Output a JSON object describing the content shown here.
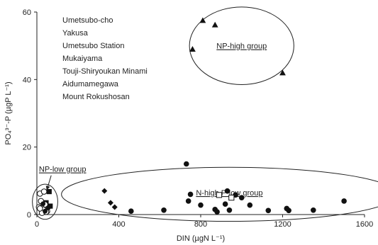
{
  "chart_data": {
    "type": "scatter",
    "xlabel": "DIN (µgN L⁻¹)",
    "ylabel": "PO₄³⁻-P (µgP L⁻¹)",
    "xlim": [
      0,
      1600
    ],
    "ylim": [
      0,
      60
    ],
    "xticks": [
      "0",
      "400",
      "800",
      "1200",
      "1600"
    ],
    "yticks": [
      "0",
      "20",
      "40",
      "60"
    ],
    "grid": false,
    "legend_position": "top-left",
    "series": [
      {
        "name": "Umetsubo-cho",
        "marker": "filled-circle",
        "x": [
          460,
          620,
          740,
          800,
          870,
          880,
          920,
          930,
          940,
          970,
          1000,
          1040,
          1130,
          1220,
          1230,
          1350,
          1500,
          730,
          750
        ],
        "y": [
          1.0,
          1.3,
          4.0,
          2.8,
          1.5,
          0.8,
          3.1,
          7.0,
          1.3,
          5.8,
          5.0,
          2.8,
          1.2,
          1.8,
          1.2,
          1.3,
          4.0,
          15.0,
          6.0
        ]
      },
      {
        "name": "Yakusa",
        "marker": "filled-diamond",
        "x": [
          330,
          360,
          380
        ],
        "y": [
          7.0,
          3.5,
          2.2
        ]
      },
      {
        "name": "Umetsubo Station",
        "marker": "open-square",
        "x": [
          890,
          950
        ],
        "y": [
          5.8,
          5.0
        ]
      },
      {
        "name": "Mukaiyama",
        "marker": "filled-triangle",
        "x": [
          810,
          870,
          760,
          1200
        ],
        "y": [
          57.5,
          56.2,
          49.0,
          42.0
        ]
      },
      {
        "name": "Touji-Shiryoukan Minami",
        "marker": "filled-square",
        "x": [
          60,
          45,
          65
        ],
        "y": [
          6.8,
          3.5,
          2.5
        ]
      },
      {
        "name": "Aidumamegawa",
        "marker": "open-circle",
        "x": [
          15,
          35,
          20,
          40,
          10,
          30,
          50,
          25,
          45,
          15
        ],
        "y": [
          6.2,
          6.8,
          4.0,
          3.0,
          2.2,
          1.5,
          1.0,
          0.5,
          0.8,
          1.8
        ]
      },
      {
        "name": "Mount Rokushosan",
        "marker": "filled-circle-small",
        "x": [
          30,
          55,
          40
        ],
        "y": [
          3.2,
          2.0,
          1.0
        ]
      }
    ],
    "groups": [
      {
        "label": "NP-high group",
        "cx": 1000,
        "cy": 50,
        "rx": 255,
        "ry": 11.5
      },
      {
        "label": "N-high P-low group",
        "cx": 940,
        "cy": 6,
        "rx": 820,
        "ry": 8
      },
      {
        "label": "NP-low group",
        "cx": 40,
        "cy": 3.8,
        "rx": 62,
        "ry": 5.2
      }
    ]
  }
}
